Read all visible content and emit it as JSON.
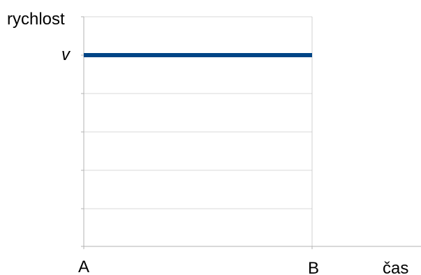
{
  "chart_data": {
    "type": "line",
    "ylabel": "rychlost",
    "xlabel": "čas",
    "x_ticks": [
      "A",
      "B"
    ],
    "y_tick_label": "v",
    "series": [
      {
        "x": [
          "A",
          "B"
        ],
        "y": [
          "v",
          "v"
        ]
      }
    ],
    "colors": {
      "series": "#004586",
      "grid": "#b3b3b3",
      "axis": "#b3b3b3"
    },
    "grid": true,
    "y_tick_count": 7
  }
}
